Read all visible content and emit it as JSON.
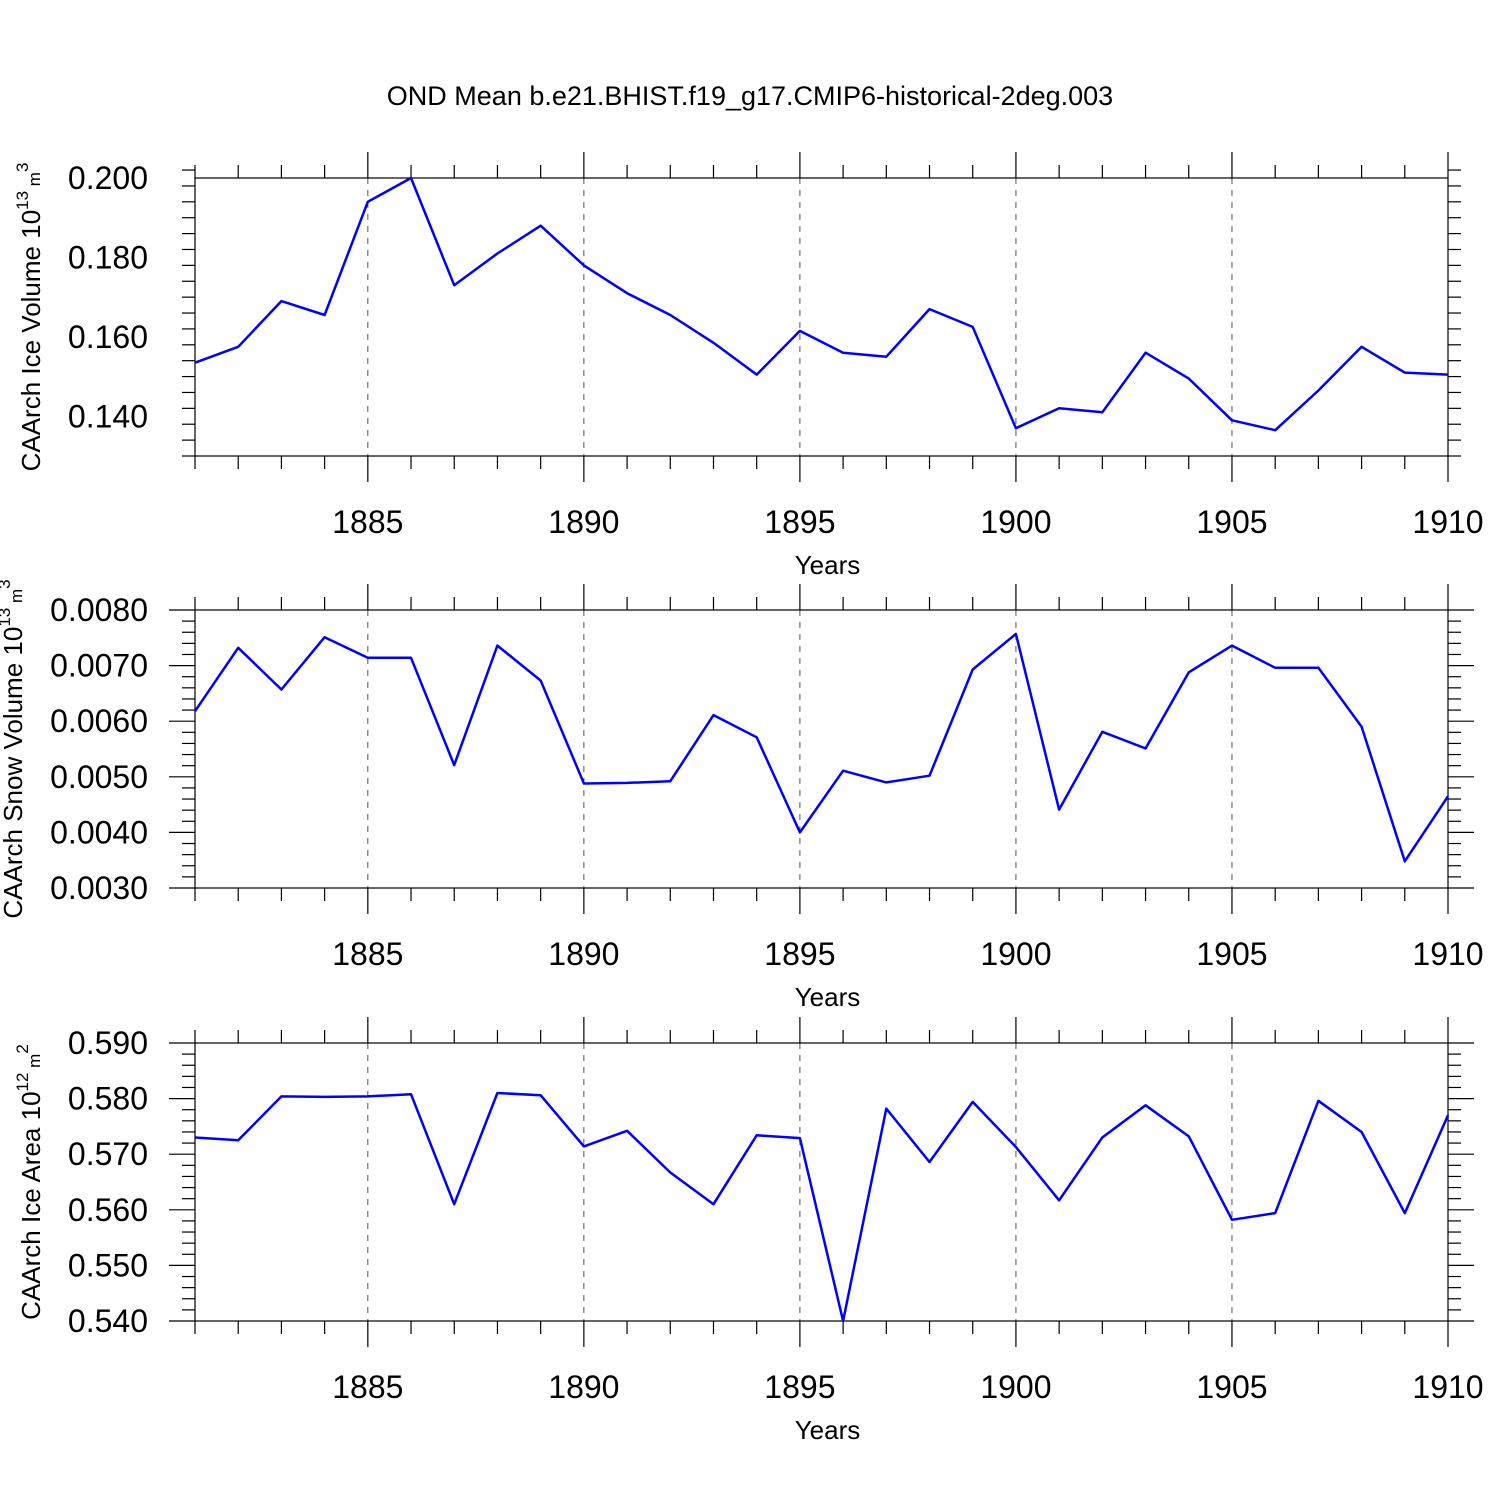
{
  "title": "OND Mean b.e21.BHIST.f19_g17.CMIP6-historical-2deg.003",
  "colors": {
    "line": "#0000ff",
    "axis": "#000000",
    "grid": "#555555"
  },
  "chart_data": [
    {
      "type": "line",
      "xlabel": "Years",
      "ylabel_main": "CAArch Ice Volume 10",
      "ylabel_exp": "13",
      "ylabel_unit": " m",
      "ylabel_unit_exp": "3",
      "xlim": [
        1881,
        1910
      ],
      "ylim": [
        0.13,
        0.2
      ],
      "yticks": [
        0.14,
        0.16,
        0.18,
        0.2
      ],
      "ytick_labels": [
        "0.140",
        "0.160",
        "0.180",
        "0.200"
      ],
      "yminor_step": 0.004,
      "xticks": [
        1885,
        1890,
        1895,
        1900,
        1905,
        1910
      ],
      "xtick_labels": [
        "1885",
        "1890",
        "1895",
        "1900",
        "1905",
        "1910"
      ],
      "grid": "dashed vertical at major x ticks",
      "x": [
        1881,
        1882,
        1883,
        1884,
        1885,
        1886,
        1887,
        1888,
        1889,
        1890,
        1891,
        1892,
        1893,
        1894,
        1895,
        1896,
        1897,
        1898,
        1899,
        1900,
        1901,
        1902,
        1903,
        1904,
        1905,
        1906,
        1907,
        1908,
        1909,
        1910
      ],
      "values": [
        0.1535,
        0.1575,
        0.169,
        0.1655,
        0.194,
        0.2,
        0.173,
        0.181,
        0.188,
        0.178,
        0.171,
        0.1655,
        0.1585,
        0.1505,
        0.1615,
        0.156,
        0.155,
        0.167,
        0.1625,
        0.137,
        0.142,
        0.141,
        0.156,
        0.1495,
        0.139,
        0.1365,
        0.1465,
        0.1575,
        0.151,
        0.1505
      ]
    },
    {
      "type": "line",
      "xlabel": "Years",
      "ylabel_main": "CAArch Snow Volume 10",
      "ylabel_exp": "13",
      "ylabel_unit": " m",
      "ylabel_unit_exp": "3",
      "xlim": [
        1881,
        1910
      ],
      "ylim": [
        0.003,
        0.008
      ],
      "yticks": [
        0.003,
        0.004,
        0.005,
        0.006,
        0.007,
        0.008
      ],
      "ytick_labels": [
        "0.0030",
        "0.0040",
        "0.0050",
        "0.0060",
        "0.0070",
        "0.0080"
      ],
      "yminor_step": 0.0002,
      "xticks": [
        1885,
        1890,
        1895,
        1900,
        1905,
        1910
      ],
      "xtick_labels": [
        "1885",
        "1890",
        "1895",
        "1900",
        "1905",
        "1910"
      ],
      "grid": "dashed vertical at major x ticks",
      "x": [
        1881,
        1882,
        1883,
        1884,
        1885,
        1886,
        1887,
        1888,
        1889,
        1890,
        1891,
        1892,
        1893,
        1894,
        1895,
        1896,
        1897,
        1898,
        1899,
        1900,
        1901,
        1902,
        1903,
        1904,
        1905,
        1906,
        1907,
        1908,
        1909,
        1910
      ],
      "values": [
        0.00618,
        0.00732,
        0.00657,
        0.00751,
        0.00714,
        0.00714,
        0.00521,
        0.00736,
        0.00673,
        0.00488,
        0.00489,
        0.00492,
        0.00611,
        0.00571,
        0.004,
        0.00511,
        0.0049,
        0.00502,
        0.00693,
        0.00757,
        0.00441,
        0.00581,
        0.00551,
        0.00688,
        0.00736,
        0.00696,
        0.00696,
        0.0059,
        0.00348,
        0.00465
      ]
    },
    {
      "type": "line",
      "xlabel": "Years",
      "ylabel_main": "CAArch Ice Area 10",
      "ylabel_exp": "12",
      "ylabel_unit": " m",
      "ylabel_unit_exp": "2",
      "xlim": [
        1881,
        1910
      ],
      "ylim": [
        0.54,
        0.59
      ],
      "yticks": [
        0.54,
        0.55,
        0.56,
        0.57,
        0.58,
        0.59
      ],
      "ytick_labels": [
        "0.540",
        "0.550",
        "0.560",
        "0.570",
        "0.580",
        "0.590"
      ],
      "yminor_step": 0.002,
      "xticks": [
        1885,
        1890,
        1895,
        1900,
        1905,
        1910
      ],
      "xtick_labels": [
        "1885",
        "1890",
        "1895",
        "1900",
        "1905",
        "1910"
      ],
      "grid": "dashed vertical at major x ticks",
      "x": [
        1881,
        1882,
        1883,
        1884,
        1885,
        1886,
        1887,
        1888,
        1889,
        1890,
        1891,
        1892,
        1893,
        1894,
        1895,
        1896,
        1897,
        1898,
        1899,
        1900,
        1901,
        1902,
        1903,
        1904,
        1905,
        1906,
        1907,
        1908,
        1909,
        1910
      ],
      "values": [
        0.573,
        0.5725,
        0.5804,
        0.5803,
        0.5804,
        0.5808,
        0.561,
        0.581,
        0.5806,
        0.5714,
        0.5742,
        0.5667,
        0.561,
        0.5734,
        0.5729,
        0.54,
        0.5782,
        0.5686,
        0.5794,
        0.5713,
        0.5617,
        0.573,
        0.5788,
        0.5732,
        0.5582,
        0.5594,
        0.5796,
        0.574,
        0.5594,
        0.577
      ]
    }
  ]
}
